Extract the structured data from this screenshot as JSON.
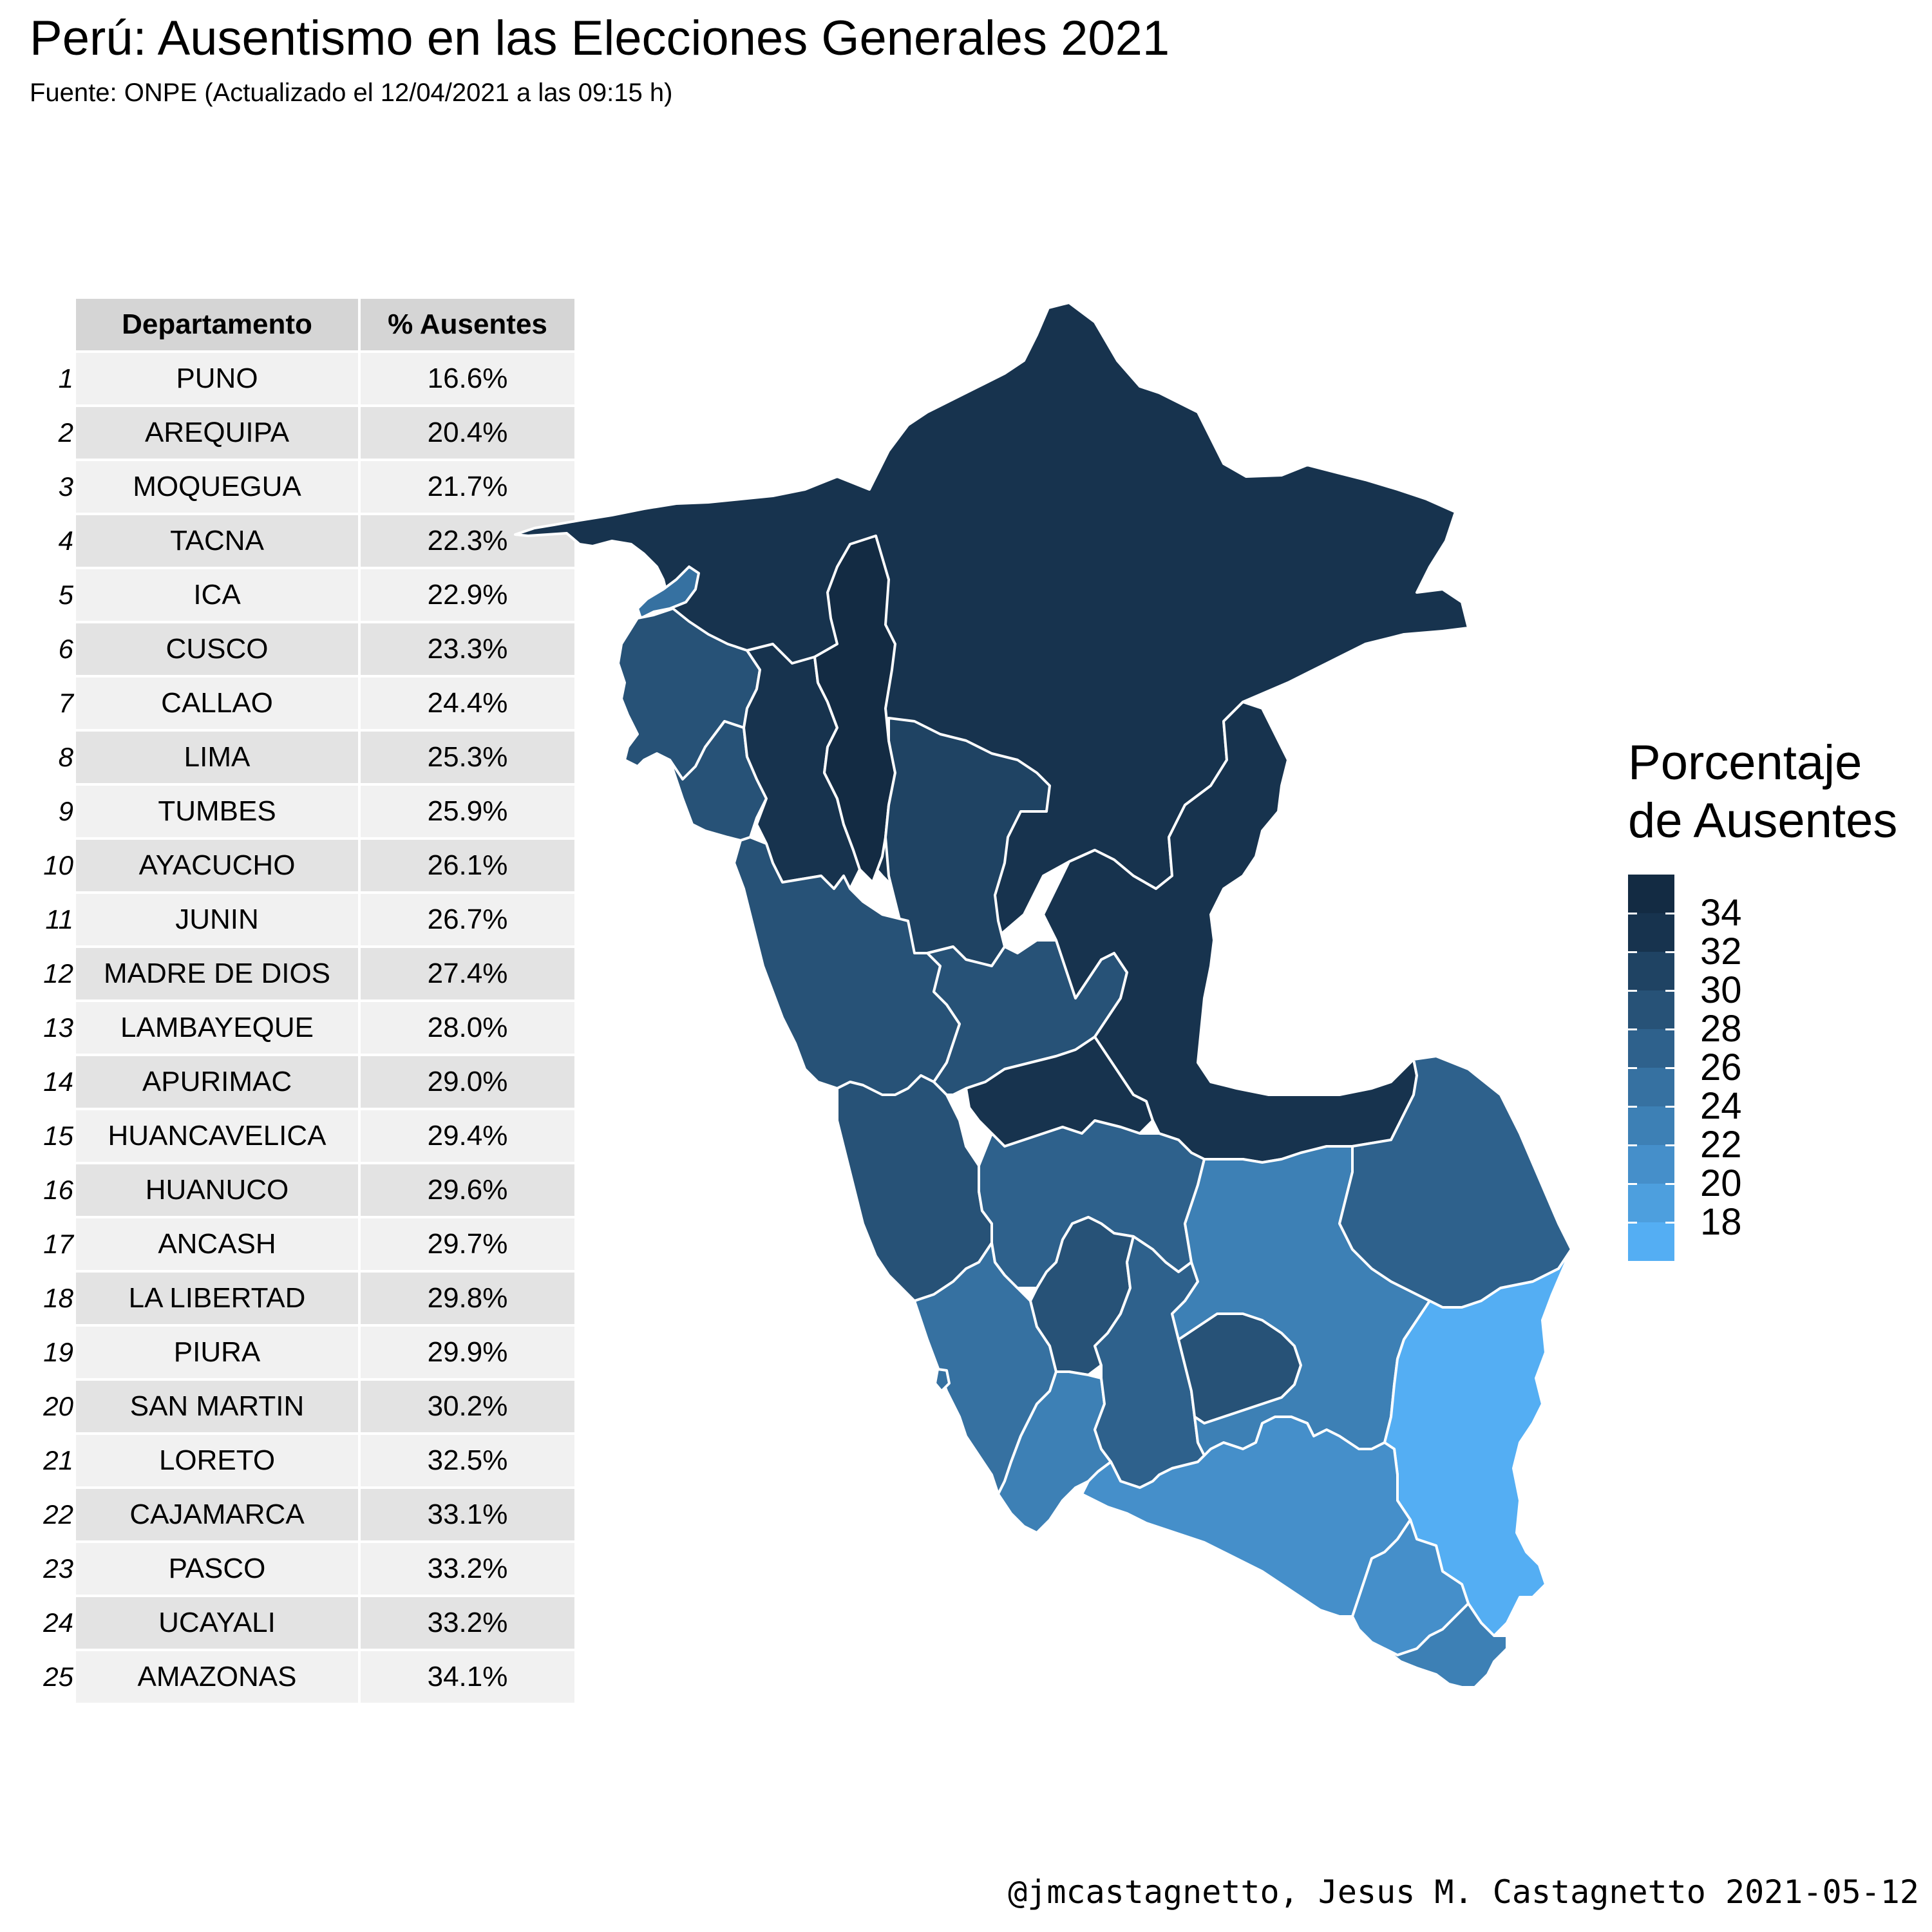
{
  "header": {
    "title": "Perú: Ausentismo en las Elecciones Generales 2021",
    "subtitle": "Fuente: ONPE (Actualizado el 12/04/2021 a las 09:15 h)"
  },
  "table": {
    "columns": [
      "Departamento",
      "% Ausentes"
    ],
    "rows": [
      {
        "n": "1",
        "dept": "PUNO",
        "pct": "16.6%"
      },
      {
        "n": "2",
        "dept": "AREQUIPA",
        "pct": "20.4%"
      },
      {
        "n": "3",
        "dept": "MOQUEGUA",
        "pct": "21.7%"
      },
      {
        "n": "4",
        "dept": "TACNA",
        "pct": "22.3%"
      },
      {
        "n": "5",
        "dept": "ICA",
        "pct": "22.9%"
      },
      {
        "n": "6",
        "dept": "CUSCO",
        "pct": "23.3%"
      },
      {
        "n": "7",
        "dept": "CALLAO",
        "pct": "24.4%"
      },
      {
        "n": "8",
        "dept": "LIMA",
        "pct": "25.3%"
      },
      {
        "n": "9",
        "dept": "TUMBES",
        "pct": "25.9%"
      },
      {
        "n": "10",
        "dept": "AYACUCHO",
        "pct": "26.1%"
      },
      {
        "n": "11",
        "dept": "JUNIN",
        "pct": "26.7%"
      },
      {
        "n": "12",
        "dept": "MADRE DE DIOS",
        "pct": "27.4%"
      },
      {
        "n": "13",
        "dept": "LAMBAYEQUE",
        "pct": "28.0%"
      },
      {
        "n": "14",
        "dept": "APURIMAC",
        "pct": "29.0%"
      },
      {
        "n": "15",
        "dept": "HUANCAVELICA",
        "pct": "29.4%"
      },
      {
        "n": "16",
        "dept": "HUANUCO",
        "pct": "29.6%"
      },
      {
        "n": "17",
        "dept": "ANCASH",
        "pct": "29.7%"
      },
      {
        "n": "18",
        "dept": "LA LIBERTAD",
        "pct": "29.8%"
      },
      {
        "n": "19",
        "dept": "PIURA",
        "pct": "29.9%"
      },
      {
        "n": "20",
        "dept": "SAN MARTIN",
        "pct": "30.2%"
      },
      {
        "n": "21",
        "dept": "LORETO",
        "pct": "32.5%"
      },
      {
        "n": "22",
        "dept": "CAJAMARCA",
        "pct": "33.1%"
      },
      {
        "n": "23",
        "dept": "PASCO",
        "pct": "33.2%"
      },
      {
        "n": "24",
        "dept": "UCAYALI",
        "pct": "33.2%"
      },
      {
        "n": "25",
        "dept": "AMAZONAS",
        "pct": "34.1%"
      }
    ]
  },
  "legend": {
    "title_line1": "Porcentaje",
    "title_line2": "de Ausentes",
    "range": [
      16.6,
      34.1
    ],
    "ticks": [
      "34",
      "32",
      "30",
      "28",
      "26",
      "24",
      "22",
      "20",
      "18"
    ],
    "color_low": "#56b1f7",
    "color_high": "#132b43"
  },
  "map": {
    "border_color": "#ffffff",
    "regions": [
      {
        "name": "LORETO",
        "value": 32.5
      },
      {
        "name": "AMAZONAS",
        "value": 34.1
      },
      {
        "name": "CAJAMARCA",
        "value": 33.1
      },
      {
        "name": "TUMBES",
        "value": 25.9
      },
      {
        "name": "PIURA",
        "value": 29.9
      },
      {
        "name": "LAMBAYEQUE",
        "value": 28.0
      },
      {
        "name": "LA LIBERTAD",
        "value": 29.8
      },
      {
        "name": "SAN MARTIN",
        "value": 30.2
      },
      {
        "name": "ANCASH",
        "value": 29.7
      },
      {
        "name": "HUANUCO",
        "value": 29.6
      },
      {
        "name": "PASCO",
        "value": 33.2
      },
      {
        "name": "UCAYALI",
        "value": 33.2
      },
      {
        "name": "LIMA",
        "value": 25.3
      },
      {
        "name": "JUNIN",
        "value": 26.7
      },
      {
        "name": "HUANCAVELICA",
        "value": 29.4
      },
      {
        "name": "ICA",
        "value": 22.9
      },
      {
        "name": "AYACUCHO",
        "value": 26.1
      },
      {
        "name": "APURIMAC",
        "value": 29.0
      },
      {
        "name": "CUSCO",
        "value": 23.3
      },
      {
        "name": "MADRE DE DIOS",
        "value": 27.4
      },
      {
        "name": "PUNO",
        "value": 16.6
      },
      {
        "name": "AREQUIPA",
        "value": 20.4
      },
      {
        "name": "MOQUEGUA",
        "value": 21.7
      },
      {
        "name": "TACNA",
        "value": 22.3
      },
      {
        "name": "CALLAO",
        "value": 24.4
      }
    ]
  },
  "caption": "@jmcastagnetto, Jesus M. Castagnetto 2021-05-12"
}
